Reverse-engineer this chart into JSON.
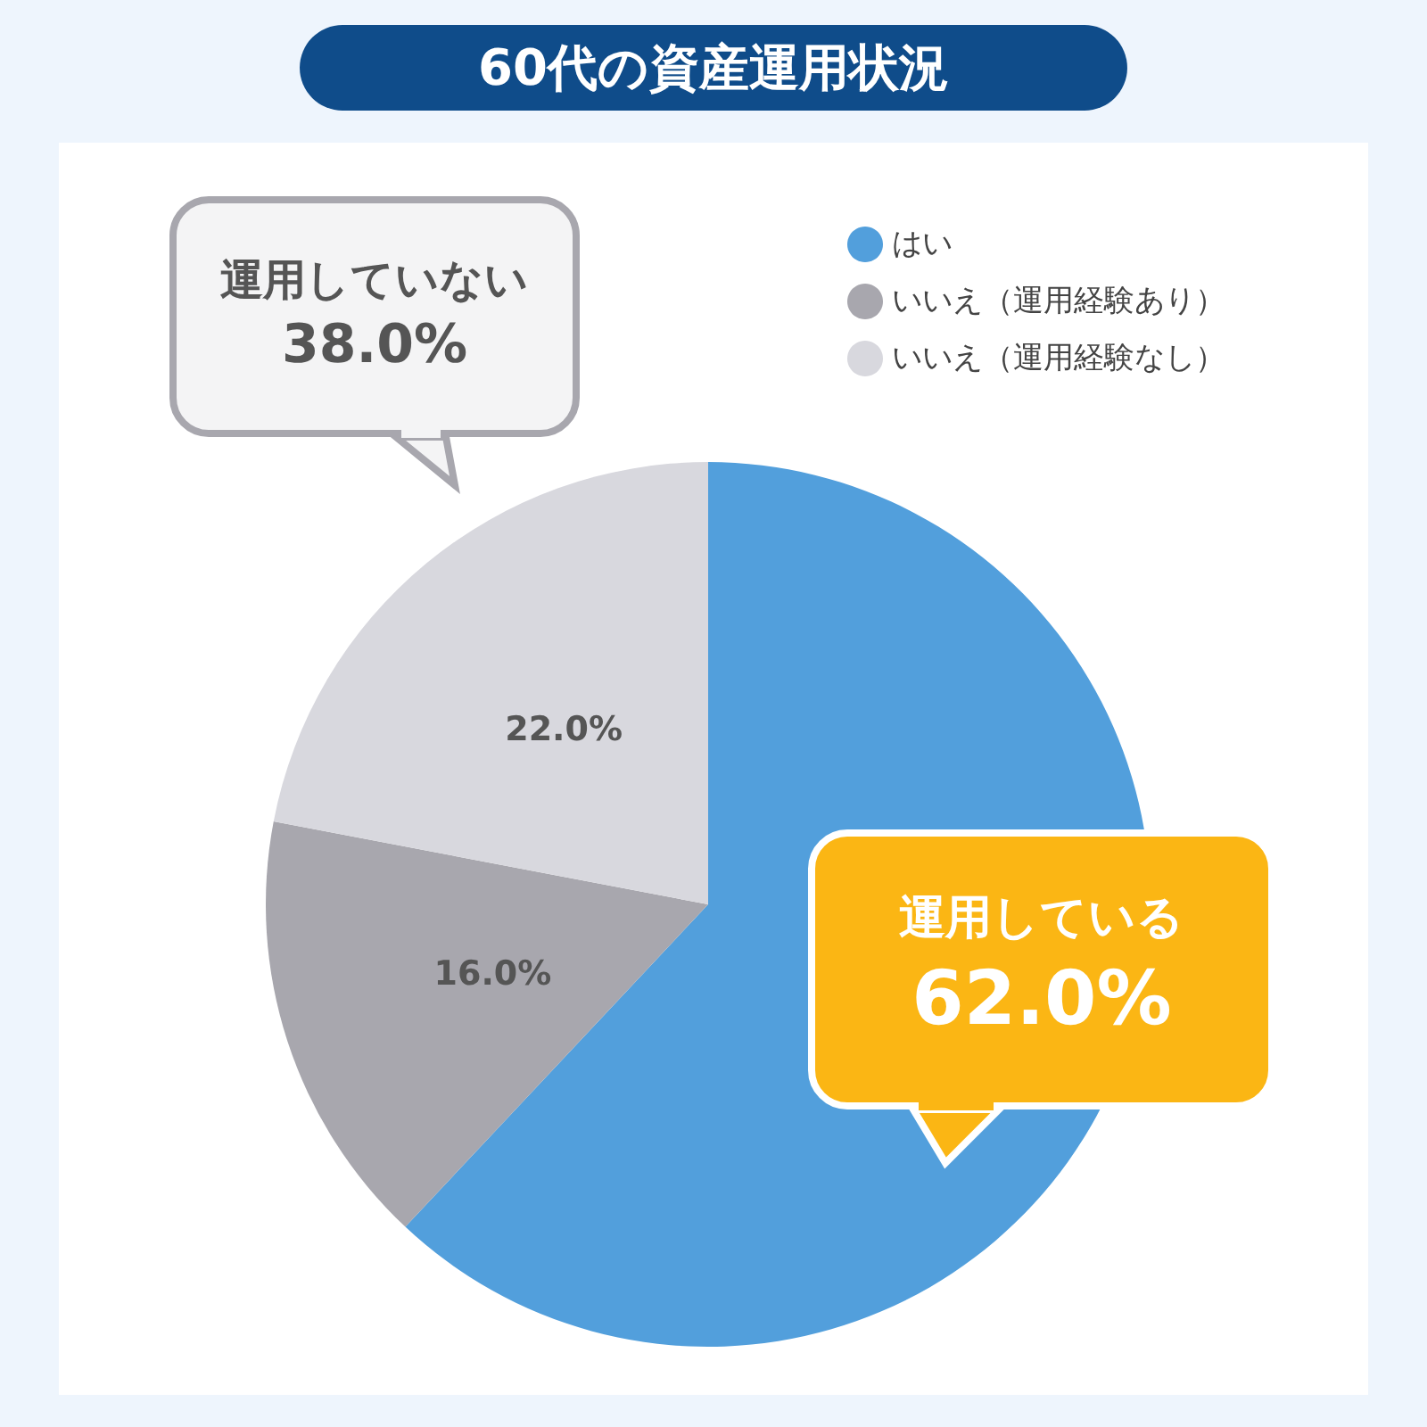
{
  "chart_data": {
    "type": "pie",
    "title": "60代の資産運用状況",
    "categories": [
      "はい",
      "いいえ（運用経験あり）",
      "いいえ（運用経験なし）"
    ],
    "values": [
      62.0,
      16.0,
      22.0
    ],
    "colors": [
      "#529fdc",
      "#a8a7ae",
      "#d8d8de"
    ],
    "value_labels": [
      null,
      "16.0%",
      "22.0%"
    ],
    "legend": "top right",
    "annotations": [
      "運用していない",
      "38.0%",
      "運用している",
      "62.0%"
    ]
  }
}
